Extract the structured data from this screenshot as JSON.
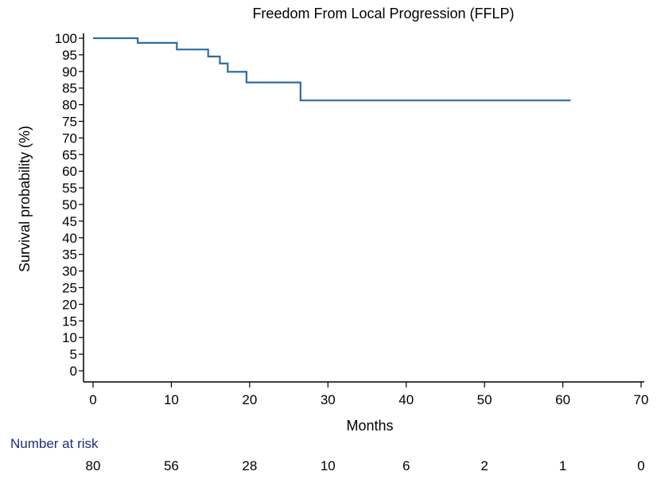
{
  "chart_data": {
    "type": "line",
    "step": true,
    "title": "Freedom From Local Progression (FFLP)",
    "xlabel": "Months",
    "ylabel": "Survival probability (%)",
    "xlim": [
      0,
      70
    ],
    "ylim": [
      0,
      100
    ],
    "x_ticks": [
      0,
      10,
      20,
      30,
      40,
      50,
      60,
      70
    ],
    "y_ticks": [
      0,
      5,
      10,
      15,
      20,
      25,
      30,
      35,
      40,
      45,
      50,
      55,
      60,
      65,
      70,
      75,
      80,
      85,
      90,
      95,
      100
    ],
    "grid": false,
    "line_color": "#2e6da4",
    "series": [
      {
        "x": [
          0,
          5.7,
          10.7,
          14.7,
          16.2,
          17.2,
          19.6,
          26.5,
          61
        ],
        "y": [
          100,
          98.6,
          96.6,
          94.5,
          92.4,
          89.9,
          86.7,
          81.3,
          81.3
        ]
      }
    ],
    "risk_table": {
      "title": "Number at risk",
      "title_color": "#1f2f7a",
      "times": [
        0,
        10,
        20,
        30,
        40,
        50,
        60,
        70
      ],
      "counts": [
        "80",
        "56",
        "28",
        "10",
        "6",
        "2",
        "1",
        "0"
      ]
    }
  }
}
